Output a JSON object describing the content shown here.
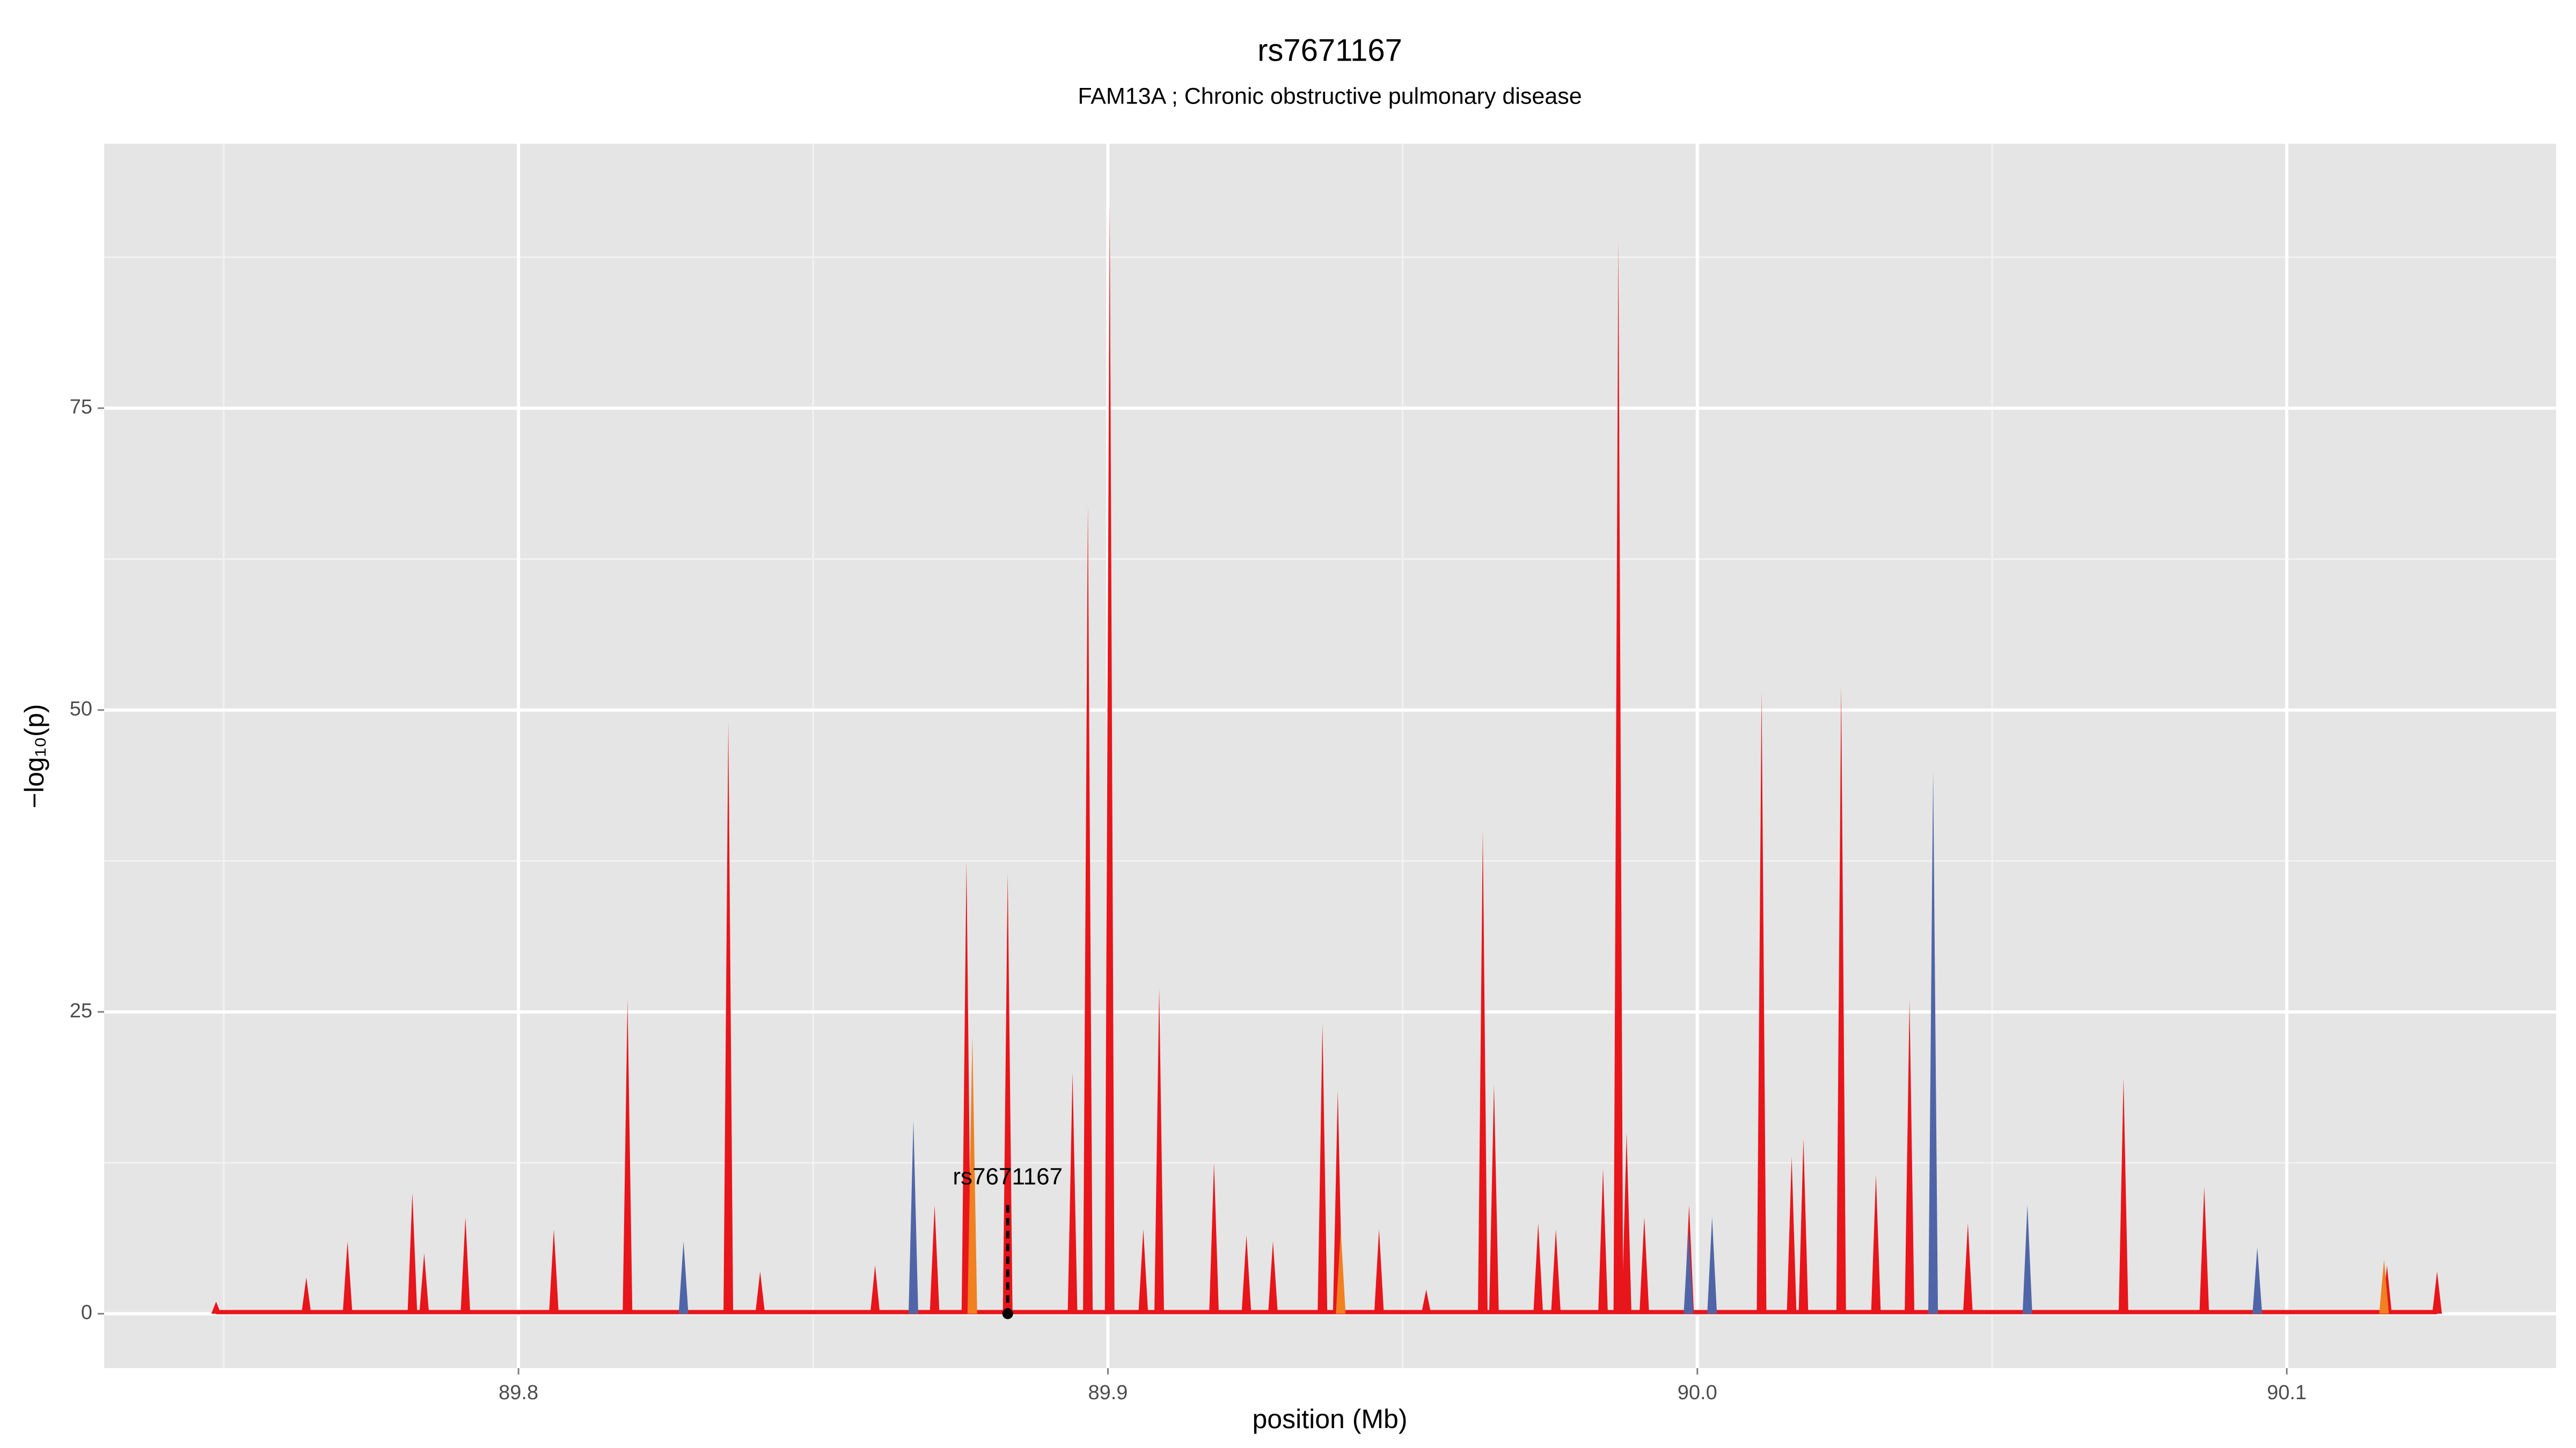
{
  "chart_data": {
    "type": "area",
    "title": "rs7671167",
    "subtitle": "FAM13A ; Chronic obstructive pulmonary disease",
    "xlabel": "position (Mb)",
    "ylabel": "−log₁₀(p)",
    "xlim": [
      89.7297,
      90.1457
    ],
    "ylim": [
      -4.5,
      96.9
    ],
    "xticks": [
      89.8,
      89.9,
      {
        "value": 90,
        "label": "90.0"
      },
      90.1
    ],
    "yticks": [
      0,
      25,
      50,
      75
    ],
    "xminor": [
      89.75,
      89.85,
      89.95,
      90.05
    ],
    "yminor": [
      12.5,
      37.5,
      62.5,
      87.5
    ],
    "grid": true,
    "series": [
      {
        "color": "#e8151b",
        "x": [
          89.7487,
          89.764,
          89.771,
          89.782,
          89.784,
          89.791,
          89.806,
          89.8185,
          89.8356,
          89.841,
          89.8605,
          89.8706,
          89.876,
          89.883,
          89.894,
          89.8966,
          89.9003,
          89.906,
          89.9087,
          89.918,
          89.9235,
          89.928,
          89.9364,
          89.939,
          89.946,
          89.954,
          89.9636,
          89.9655,
          89.973,
          89.976,
          89.984,
          89.9866,
          89.988,
          89.991,
          89.9986,
          90.0109,
          90.016,
          90.018,
          90.0244,
          90.0303,
          90.036,
          90.0459,
          90.0723,
          90.086,
          90.117,
          90.1255
        ],
        "values": [
          1,
          3,
          6,
          10,
          5,
          8,
          7,
          26,
          49,
          3.5,
          4,
          9,
          37.5,
          36.5,
          20,
          67,
          92,
          7,
          27,
          12.5,
          6.5,
          6,
          24,
          18.5,
          7,
          2,
          40,
          19,
          7.5,
          7,
          12,
          89,
          15,
          8,
          9,
          51.5,
          13,
          14.5,
          52,
          11.5,
          26,
          7.5,
          19.5,
          10.5,
          4,
          3.5
        ]
      },
      {
        "color": "#5065a8",
        "x": [
          89.828,
          89.867,
          89.9985,
          90.0025,
          90.04,
          90.056,
          90.095
        ],
        "values": [
          6,
          16,
          7,
          8,
          45,
          9,
          5.5
        ]
      },
      {
        "color": "#f08020",
        "x": [
          89.877,
          89.9395,
          90.1165
        ],
        "values": [
          23,
          7,
          4.5
        ]
      }
    ],
    "annotation": {
      "text": "rs7671167",
      "x": 89.883,
      "ymin": 0,
      "ymax": 9
    }
  }
}
